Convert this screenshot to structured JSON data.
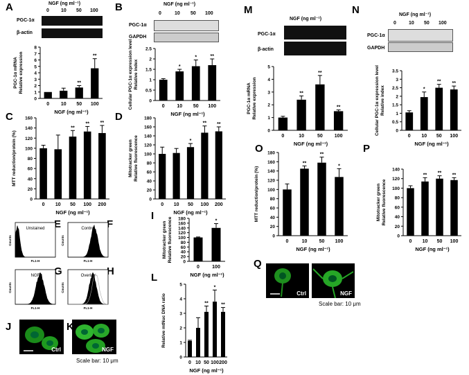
{
  "panel_letters": {
    "A": "A",
    "B": "B",
    "C": "C",
    "D": "D",
    "E": "E",
    "F": "F",
    "G": "G",
    "H": "H",
    "I": "I",
    "J": "J",
    "K": "K",
    "L": "L",
    "M": "M",
    "N": "N",
    "O": "O",
    "P": "P",
    "Q": "Q"
  },
  "blot": {
    "A": {
      "title": "NGF (ng ml⁻¹)",
      "doses": [
        "0",
        "10",
        "50",
        "100"
      ],
      "rows": [
        "PGC-1α",
        "β-actin"
      ]
    },
    "B": {
      "title": "NGF (ng ml⁻¹)",
      "doses": [
        "0",
        "10",
        "50",
        "100"
      ],
      "rows": [
        "PGC-1α",
        "GAPDH"
      ]
    },
    "M": {
      "title": "NGF (ng ml⁻¹)",
      "doses": [
        "0",
        "10",
        "50",
        "100"
      ],
      "rows": [
        "PGC-1α",
        "β-actin"
      ]
    },
    "N": {
      "title": "NGF (ng ml⁻¹)",
      "doses": [
        "0",
        "10",
        "50",
        "100"
      ],
      "rows": [
        "PGC-1α",
        "GAPDH"
      ]
    }
  },
  "flow": {
    "E_label": "Unstained",
    "F_label": "Control",
    "G_label": "NGF",
    "H_label": "Overlay",
    "xlabel": "FL1-H",
    "ylabel": "Counts"
  },
  "micro": {
    "J_ctrl": "Ctrl",
    "K_ngf": "NGF",
    "K_scale": "Scale bar: 10 μm",
    "Q_ctrl": "Ctrl",
    "Q_ngf": "NGF",
    "Q_scale": "Scale bar: 10 μm"
  },
  "chart_data": [
    {
      "id": "A",
      "type": "bar",
      "categories": [
        "0",
        "10",
        "50",
        "100"
      ],
      "values": [
        1.0,
        1.2,
        1.7,
        4.7
      ],
      "errors": [
        0.0,
        0.4,
        0.3,
        1.5
      ],
      "sig": [
        "",
        "",
        "**",
        "**"
      ],
      "ylabel": "PGC-1α mRNA\nRelative expression",
      "xlabel": "NGF (ng ml⁻¹)",
      "ylim": [
        0,
        8
      ],
      "yticks": [
        0,
        1,
        2,
        3,
        4,
        5,
        6,
        7,
        8
      ]
    },
    {
      "id": "B",
      "type": "bar",
      "categories": [
        "0",
        "10",
        "50",
        "100"
      ],
      "values": [
        1.0,
        1.4,
        1.65,
        1.7
      ],
      "errors": [
        0.05,
        0.1,
        0.3,
        0.3
      ],
      "sig": [
        "",
        "*",
        "*",
        "**"
      ],
      "ylabel": "Cellular PGC-1α expression level\nRelative index",
      "xlabel": "NGF (ng ml⁻¹)",
      "ylim": [
        0,
        2.5
      ],
      "yticks": [
        0,
        0.5,
        1,
        1.5,
        2,
        2.5
      ]
    },
    {
      "id": "C",
      "type": "bar",
      "categories": [
        "0",
        "10",
        "50",
        "100",
        "200"
      ],
      "values": [
        100,
        98,
        123,
        133,
        130
      ],
      "errors": [
        6,
        28,
        12,
        10,
        15
      ],
      "sig": [
        "",
        "",
        "**",
        "**",
        "**"
      ],
      "ylabel": "MTT reduction/protein (%)",
      "xlabel": "NGF (ng ml⁻¹)",
      "ylim": [
        0,
        160
      ],
      "yticks": [
        0,
        20,
        40,
        60,
        80,
        100,
        120,
        140,
        160
      ]
    },
    {
      "id": "D",
      "type": "bar",
      "categories": [
        "0",
        "10",
        "50",
        "100",
        "200"
      ],
      "values": [
        100,
        102,
        115,
        147,
        150
      ],
      "errors": [
        15,
        10,
        8,
        15,
        10
      ],
      "sig": [
        "",
        "",
        "*",
        "**",
        "**"
      ],
      "ylabel": "Mitotracker green\nRelative fluorescence",
      "xlabel": "NGF (ng ml⁻¹)",
      "ylim": [
        0,
        180
      ],
      "yticks": [
        0,
        20,
        40,
        60,
        80,
        100,
        120,
        140,
        160,
        180
      ]
    },
    {
      "id": "I",
      "type": "bar",
      "categories": [
        "0",
        "100"
      ],
      "values": [
        100,
        140
      ],
      "errors": [
        2,
        18
      ],
      "sig": [
        "",
        "*"
      ],
      "ylabel": "Mitotracker green\nRelative fluorescence",
      "xlabel": "NGF (ng ml⁻¹)",
      "ylim": [
        0,
        180
      ],
      "yticks": [
        0,
        20,
        40,
        60,
        80,
        100,
        120,
        140,
        160,
        180
      ]
    },
    {
      "id": "L",
      "type": "bar",
      "categories": [
        "0",
        "10",
        "50",
        "100",
        "200"
      ],
      "values": [
        1.1,
        2.0,
        3.1,
        3.8,
        3.1
      ],
      "errors": [
        0.05,
        0.7,
        0.4,
        0.8,
        0.3
      ],
      "sig": [
        "",
        "",
        "**",
        "*",
        "**"
      ],
      "ylabel": "Relative mtNuc DNA ratio",
      "xlabel": "NGF (ng ml⁻¹)",
      "ylim": [
        0,
        5
      ],
      "yticks": [
        0,
        1,
        2,
        3,
        4,
        5
      ]
    },
    {
      "id": "M",
      "type": "bar",
      "categories": [
        "0",
        "10",
        "50",
        "100"
      ],
      "values": [
        1.0,
        2.4,
        3.6,
        1.5
      ],
      "errors": [
        0.1,
        0.3,
        0.7,
        0.1
      ],
      "sig": [
        "",
        "**",
        "**",
        "**"
      ],
      "ylabel": "PGC-1α mRNA\nRelative expression",
      "xlabel": "NGF (ng ml⁻¹)",
      "ylim": [
        0,
        5
      ],
      "yticks": [
        0,
        1,
        2,
        3,
        4,
        5
      ]
    },
    {
      "id": "N",
      "type": "bar",
      "categories": [
        "0",
        "10",
        "50",
        "100"
      ],
      "values": [
        1.05,
        1.95,
        2.5,
        2.4
      ],
      "errors": [
        0.1,
        0.3,
        0.2,
        0.2
      ],
      "sig": [
        "",
        "*",
        "**",
        "**"
      ],
      "ylabel": "Cellular PGC-1α expression level\nRelative index",
      "xlabel": "NGF (ng ml⁻¹)",
      "ylim": [
        0,
        3.5
      ],
      "yticks": [
        0,
        0.5,
        1,
        1.5,
        2,
        2.5,
        3,
        3.5
      ]
    },
    {
      "id": "O",
      "type": "bar",
      "categories": [
        "0",
        "10",
        "50",
        "100"
      ],
      "values": [
        100,
        145,
        158,
        127
      ],
      "errors": [
        12,
        6,
        12,
        18
      ],
      "sig": [
        "",
        "**",
        "**",
        "*"
      ],
      "ylabel": "MTT reduction/protein (%)",
      "xlabel": "NGF (ng ml⁻¹)",
      "ylim": [
        0,
        180
      ],
      "yticks": [
        0,
        20,
        40,
        60,
        80,
        100,
        120,
        140,
        160,
        180
      ]
    },
    {
      "id": "P",
      "type": "bar",
      "categories": [
        "0",
        "10",
        "50",
        "100"
      ],
      "values": [
        100,
        114,
        120,
        117
      ],
      "errors": [
        5,
        8,
        6,
        5
      ],
      "sig": [
        "",
        "**",
        "**",
        "**"
      ],
      "ylabel": "Mitotracker green\nRelative fluorescence",
      "xlabel": "NGF (ng ml⁻¹)",
      "ylim": [
        0,
        140
      ],
      "yticks": [
        0,
        20,
        40,
        60,
        80,
        100,
        120,
        140
      ]
    }
  ]
}
